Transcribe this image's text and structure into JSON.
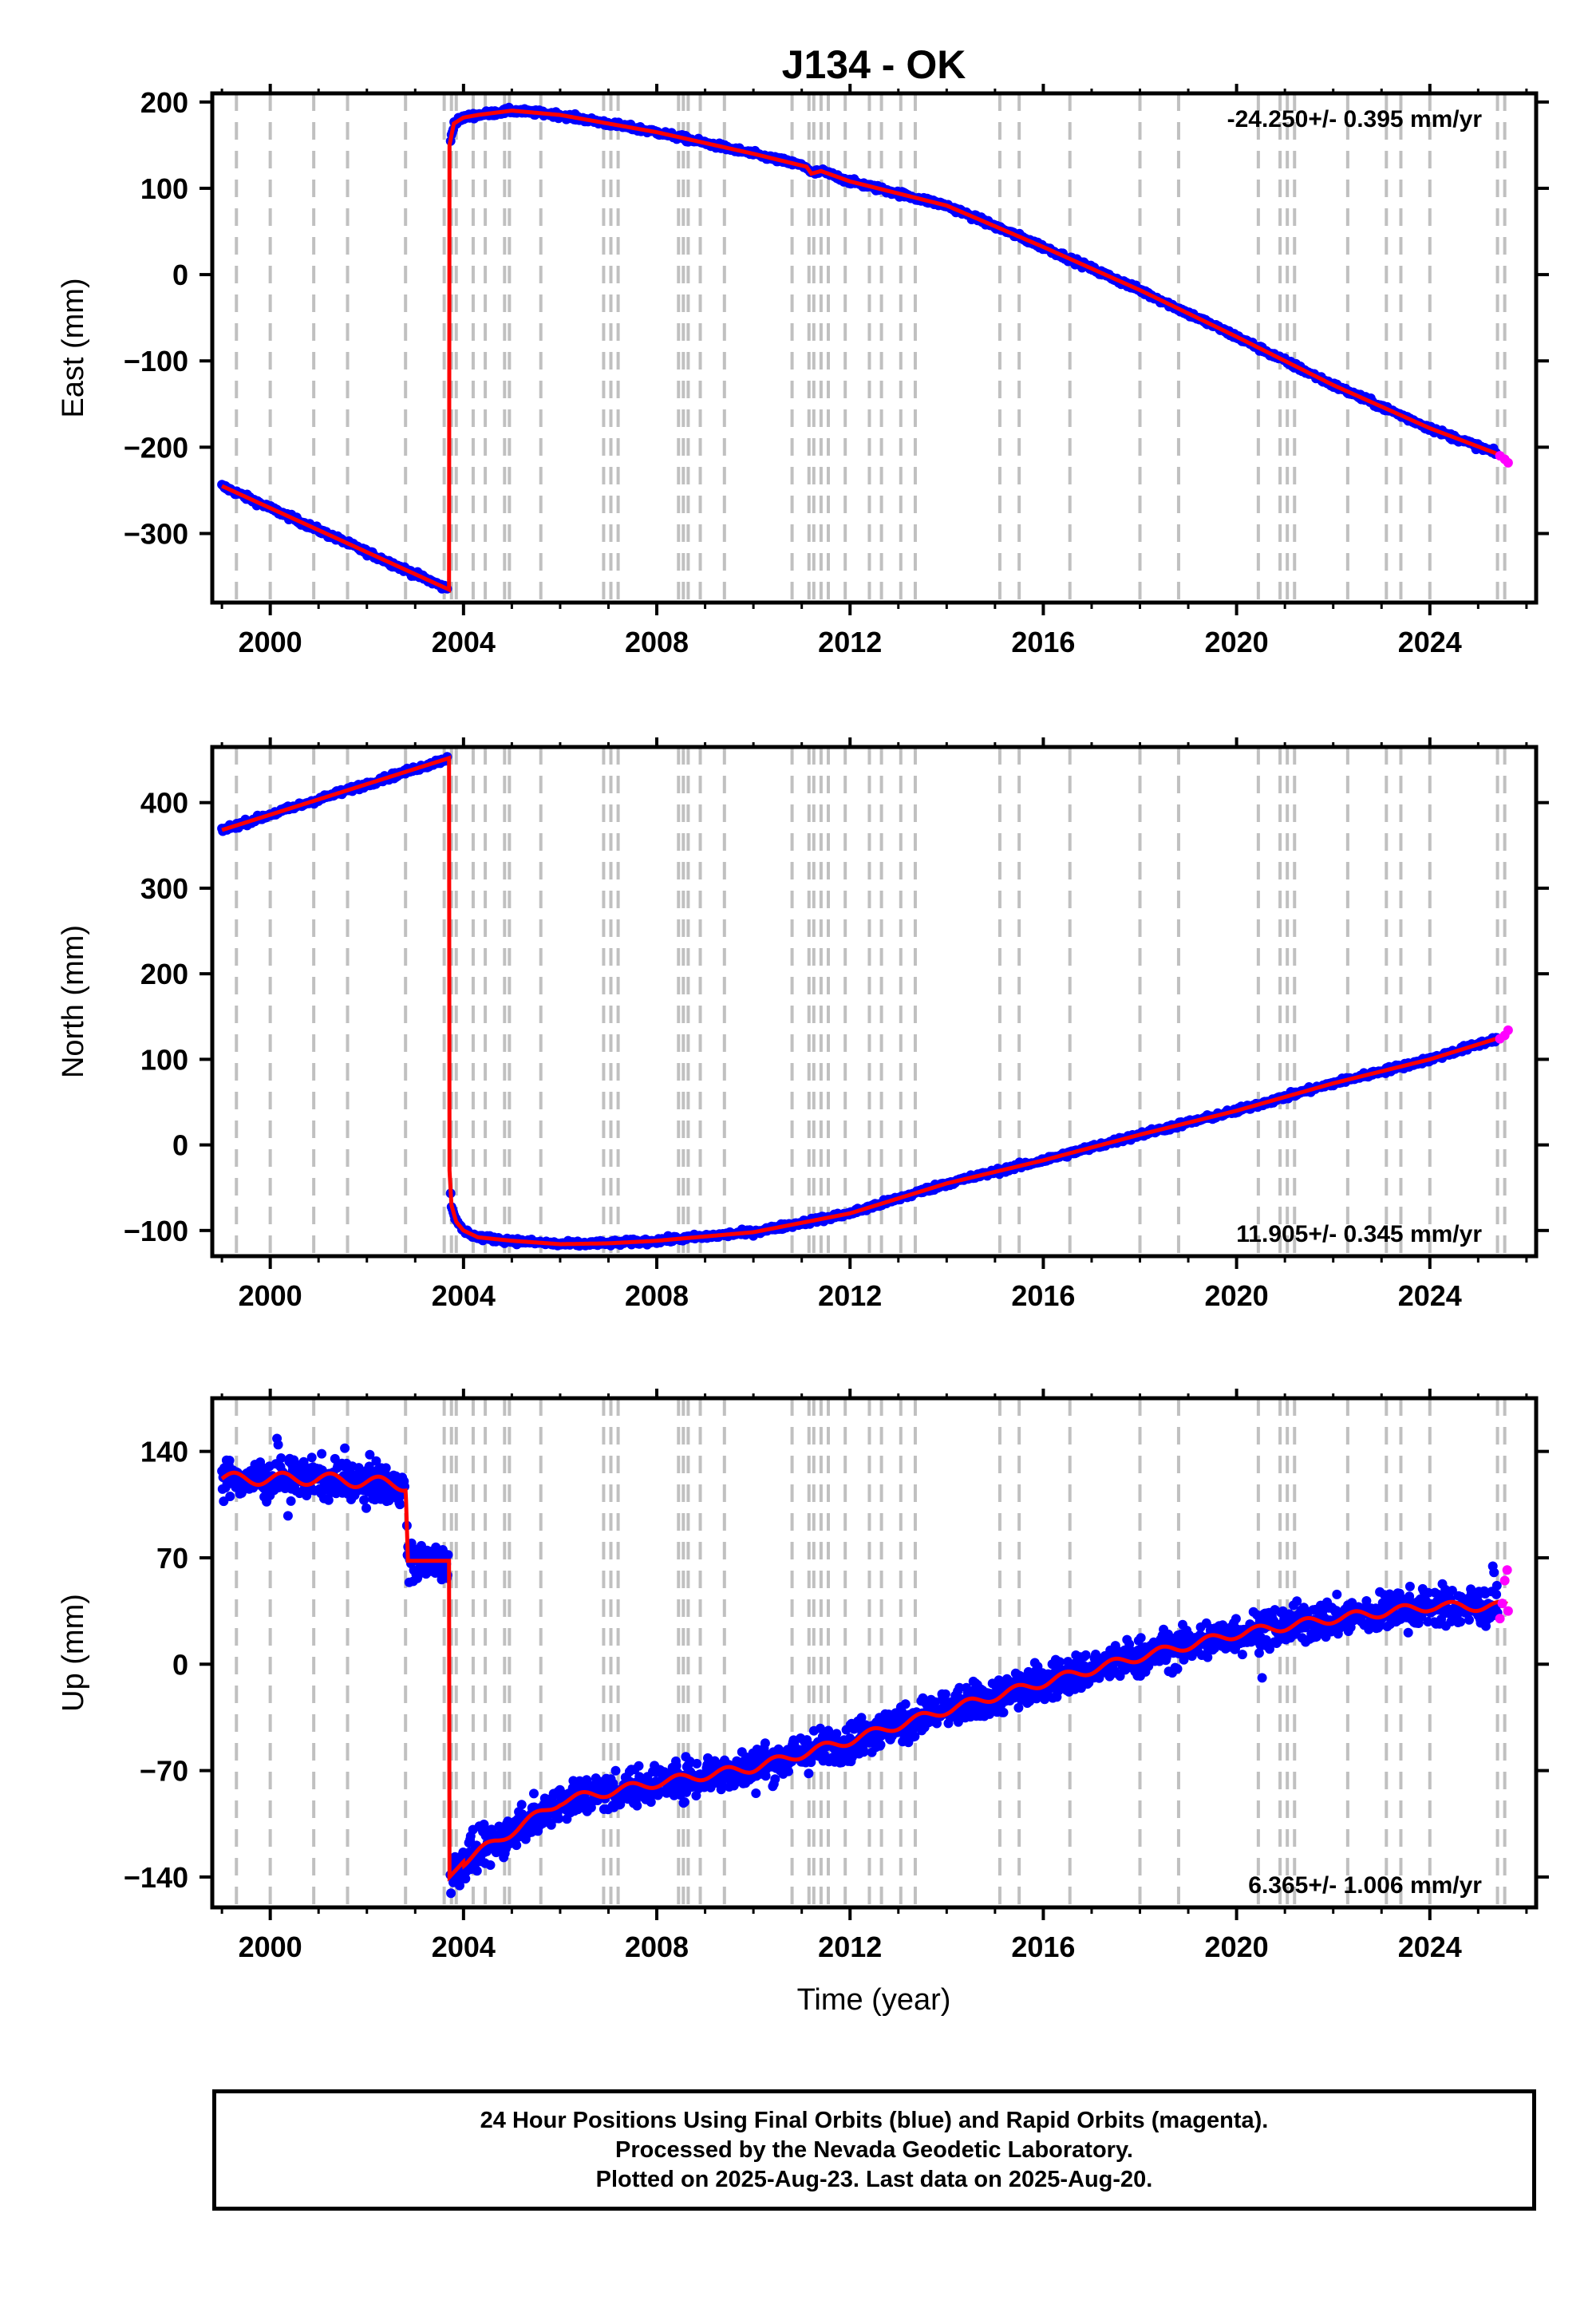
{
  "title": "J134 - OK",
  "xlabel": "Time (year)",
  "footer": {
    "line1": "24 Hour Positions Using Final Orbits (blue) and Rapid Orbits (magenta).",
    "line2": "Processed by the Nevada Geodetic Laboratory.",
    "line3": "Plotted on 2025-Aug-23. Last data on 2025-Aug-20."
  },
  "colors": {
    "final": "#0000ff",
    "rapid": "#ff00ff",
    "model": "#ff0000",
    "event_line": "#c0c0c0",
    "frame": "#000000"
  },
  "chart_data": [
    {
      "type": "scatter",
      "name": "east",
      "ylabel": "East (mm)",
      "rate_text": "-24.250+/- 0.395 mm/yr",
      "rate_position": "top-right",
      "xlim": [
        1998.8,
        2026.2
      ],
      "ylim": [
        -380,
        210
      ],
      "xticks": [
        2000,
        2004,
        2008,
        2012,
        2016,
        2020,
        2024
      ],
      "yticks": [
        -300,
        -200,
        -100,
        0,
        100,
        200
      ],
      "tick_labels": [
        "−300",
        "−200",
        "−100",
        "0",
        "100",
        "200"
      ],
      "series": [
        {
          "role": "model",
          "x": [
            1999.0,
            2003.7,
            2003.71,
            2003.8,
            2004.0,
            2004.3,
            2005.0,
            2006.0,
            2008.0,
            2010.0,
            2011.1,
            2011.2,
            2011.4,
            2012.0,
            2014.0,
            2016.0,
            2018.0,
            2020.0,
            2022.0,
            2024.0,
            2025.6
          ],
          "y": [
            -245,
            -365,
            150,
            175,
            182,
            185,
            190,
            185,
            165,
            140,
            125,
            117,
            120,
            108,
            80,
            32,
            -18,
            -72,
            -128,
            -178,
            -212
          ]
        },
        {
          "role": "rapid",
          "x": [
            2025.45,
            2025.55,
            2025.62
          ],
          "y": [
            -210,
            -214,
            -218
          ]
        }
      ]
    },
    {
      "type": "scatter",
      "name": "north",
      "ylabel": "North (mm)",
      "rate_text": "11.905+/- 0.345 mm/yr",
      "rate_position": "bottom-right",
      "xlim": [
        1998.8,
        2026.2
      ],
      "ylim": [
        -130,
        465
      ],
      "xticks": [
        2000,
        2004,
        2008,
        2012,
        2016,
        2020,
        2024
      ],
      "yticks": [
        -100,
        0,
        100,
        200,
        300,
        400
      ],
      "tick_labels": [
        "−100",
        "0",
        "100",
        "200",
        "300",
        "400"
      ],
      "series": [
        {
          "role": "model",
          "x": [
            1999.0,
            2003.7,
            2003.71,
            2003.75,
            2003.85,
            2004.0,
            2004.3,
            2005.0,
            2006.0,
            2007.0,
            2008.0,
            2010.0,
            2012.0,
            2014.0,
            2016.0,
            2018.0,
            2020.0,
            2022.0,
            2024.0,
            2025.6
          ],
          "y": [
            368,
            452,
            -30,
            -70,
            -90,
            -100,
            -108,
            -112,
            -116,
            -115,
            -112,
            -102,
            -80,
            -45,
            -18,
            12,
            40,
            72,
            100,
            128
          ]
        },
        {
          "role": "rapid",
          "x": [
            2025.45,
            2025.55,
            2025.62
          ],
          "y": [
            124,
            128,
            134
          ]
        }
      ]
    },
    {
      "type": "scatter",
      "name": "up",
      "ylabel": "Up (mm)",
      "rate_text": "6.365+/- 1.006 mm/yr",
      "rate_position": "bottom-right",
      "xlim": [
        1998.8,
        2026.2
      ],
      "ylim": [
        -160,
        175
      ],
      "xticks": [
        2000,
        2004,
        2008,
        2012,
        2016,
        2020,
        2024
      ],
      "yticks": [
        -140,
        -70,
        0,
        70,
        140
      ],
      "tick_labels": [
        "−140",
        "−70",
        "0",
        "70",
        "140"
      ],
      "series": [
        {
          "role": "model",
          "x": [
            1999.0,
            2000.0,
            2001.0,
            2002.0,
            2002.8,
            2002.85,
            2003.7,
            2003.71,
            2004.0,
            2005.0,
            2006.0,
            2008.0,
            2010.0,
            2012.0,
            2014.0,
            2016.0,
            2018.0,
            2020.0,
            2022.0,
            2024.0,
            2025.6
          ],
          "y": [
            122,
            122,
            122,
            120,
            118,
            68,
            68,
            -140,
            -130,
            -110,
            -90,
            -78,
            -68,
            -50,
            -30,
            -12,
            5,
            20,
            30,
            38,
            38
          ]
        },
        {
          "role": "rapid",
          "x": [
            2025.45,
            2025.5,
            2025.55,
            2025.6,
            2025.62
          ],
          "y": [
            30,
            40,
            55,
            62,
            35
          ]
        }
      ]
    }
  ],
  "event_lines_x": [
    1999.3,
    2000.0,
    2000.9,
    2001.6,
    2002.8,
    2003.6,
    2003.75,
    2003.85,
    2004.2,
    2004.45,
    2004.85,
    2004.95,
    2005.6,
    2006.9,
    2007.05,
    2007.2,
    2008.45,
    2008.55,
    2008.65,
    2008.9,
    2009.4,
    2010.8,
    2011.15,
    2011.25,
    2011.4,
    2011.55,
    2011.9,
    2012.4,
    2012.65,
    2013.05,
    2013.35,
    2015.1,
    2015.5,
    2016.55,
    2018.0,
    2018.8,
    2020.45,
    2020.9,
    2021.05,
    2021.2,
    2022.3,
    2023.1,
    2023.4,
    2024.0,
    2025.4,
    2025.55
  ]
}
